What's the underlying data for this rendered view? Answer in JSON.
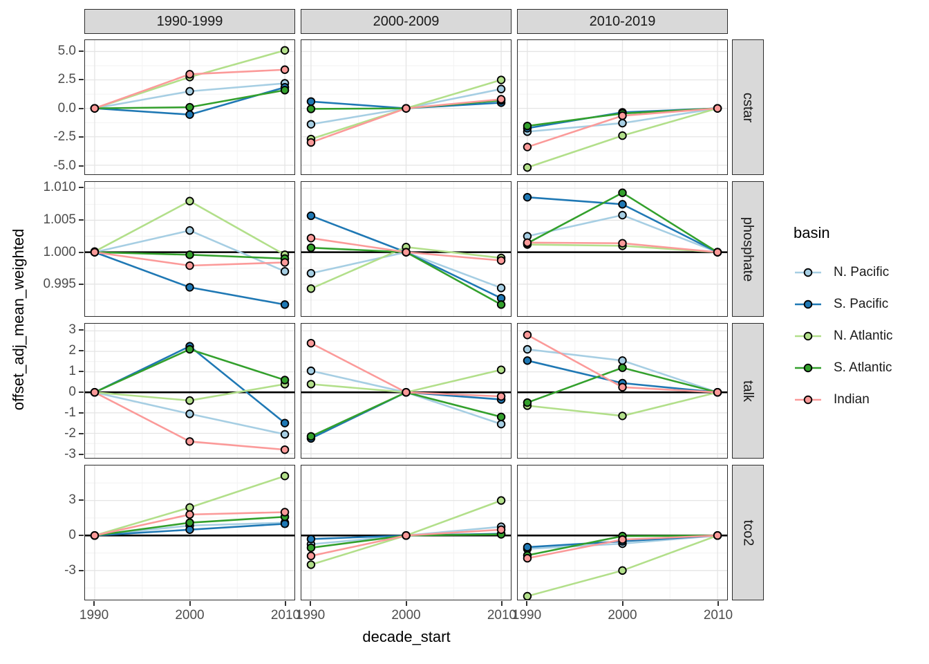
{
  "chart_data": {
    "type": "line",
    "title": "",
    "xlabel": "decade_start",
    "ylabel": "offset_adj_mean_weighted",
    "x": [
      1990,
      2000,
      2010
    ],
    "x_tick_labels": [
      "1990",
      "2000",
      "2010"
    ],
    "x_range": [
      1989,
      2011
    ],
    "grid": "on",
    "legend_position": "right",
    "facet_cols": [
      "1990-1999",
      "2000-2009",
      "2010-2019"
    ],
    "facet_rows": [
      "cstar",
      "phosphate",
      "talk",
      "tco2"
    ],
    "series_names": [
      "N. Pacific",
      "S. Pacific",
      "N. Atlantic",
      "S. Atlantic",
      "Indian"
    ],
    "series_colors": {
      "N. Pacific": "#a6cee3",
      "S. Pacific": "#1f78b4",
      "N. Atlantic": "#b2df8a",
      "S. Atlantic": "#33a02c",
      "Indian": "#fb9a99"
    },
    "row_axes": {
      "cstar": {
        "ticks": [
          5.0,
          2.5,
          0.0,
          -2.5,
          -5.0
        ],
        "tick_labels": [
          "5.0",
          "2.5",
          "0.0",
          "-2.5",
          "-5.0"
        ],
        "minor_ticks": [
          3.75,
          1.25,
          -1.25,
          -3.75
        ],
        "ymin": -5.8,
        "ymax": 6.0,
        "ref_line": null
      },
      "phosphate": {
        "ticks": [
          1.01,
          1.005,
          1.0,
          0.995
        ],
        "tick_labels": [
          "1.010",
          "1.005",
          "1.000",
          "0.995"
        ],
        "minor_ticks": [
          1.0075,
          1.0025,
          0.9975,
          0.9925
        ],
        "ymin": 0.99,
        "ymax": 1.011,
        "ref_line": 1.0
      },
      "talk": {
        "ticks": [
          3,
          2,
          1,
          0,
          -1,
          -2,
          -3
        ],
        "tick_labels": [
          "3",
          "2",
          "1",
          "0",
          "-1",
          "-2",
          "-3"
        ],
        "minor_ticks": [
          2.5,
          1.5,
          0.5,
          -0.5,
          -1.5,
          -2.5
        ],
        "ymin": -3.2,
        "ymax": 3.35,
        "ref_line": 0
      },
      "tco2": {
        "ticks": [
          3,
          0,
          -3
        ],
        "tick_labels": [
          "3",
          "0",
          "-3"
        ],
        "minor_ticks": [
          4.5,
          1.5,
          -1.5,
          -4.5
        ],
        "ymin": -5.5,
        "ymax": 6.0,
        "ref_line": 0
      }
    },
    "panels": [
      {
        "row": "cstar",
        "col": "1990-1999",
        "series": {
          "N. Pacific": [
            0,
            1.5,
            2.2
          ],
          "S. Pacific": [
            0,
            -0.55,
            1.85
          ],
          "N. Atlantic": [
            0,
            2.75,
            5.1
          ],
          "S. Atlantic": [
            0,
            0.1,
            1.6
          ],
          "Indian": [
            0,
            3.0,
            3.4
          ]
        }
      },
      {
        "row": "cstar",
        "col": "2000-2009",
        "series": {
          "N. Pacific": [
            -1.4,
            0,
            1.7
          ],
          "S. Pacific": [
            0.6,
            0,
            0.5
          ],
          "N. Atlantic": [
            -2.7,
            0,
            2.5
          ],
          "S. Atlantic": [
            -0.05,
            0,
            0.7
          ],
          "Indian": [
            -3.0,
            0,
            0.8
          ]
        }
      },
      {
        "row": "cstar",
        "col": "2010-2019",
        "series": {
          "N. Pacific": [
            -2.05,
            -1.3,
            0
          ],
          "S. Pacific": [
            -1.75,
            -0.35,
            0
          ],
          "N. Atlantic": [
            -5.2,
            -2.4,
            0
          ],
          "S. Atlantic": [
            -1.55,
            -0.45,
            0
          ],
          "Indian": [
            -3.4,
            -0.65,
            0
          ]
        }
      },
      {
        "row": "phosphate",
        "col": "1990-1999",
        "series": {
          "N. Pacific": [
            1.0,
            1.0034,
            0.997
          ],
          "S. Pacific": [
            1.0,
            0.9945,
            0.9918
          ],
          "N. Atlantic": [
            1.0001,
            1.008,
            0.9996
          ],
          "S. Atlantic": [
            1.0,
            0.9996,
            0.999
          ],
          "Indian": [
            1.0,
            0.9979,
            0.9984
          ]
        }
      },
      {
        "row": "phosphate",
        "col": "2000-2009",
        "series": {
          "N. Pacific": [
            0.9967,
            1.0,
            0.9944
          ],
          "S. Pacific": [
            1.0057,
            1.0,
            0.9928
          ],
          "N. Atlantic": [
            0.9943,
            1.0008,
            0.9991
          ],
          "S. Atlantic": [
            1.0007,
            1.0,
            0.9918
          ],
          "Indian": [
            1.0022,
            1.0,
            0.9987
          ]
        }
      },
      {
        "row": "phosphate",
        "col": "2010-2019",
        "series": {
          "N. Pacific": [
            1.0025,
            1.0058,
            1.0
          ],
          "S. Pacific": [
            1.0086,
            1.0075,
            1.0
          ],
          "N. Atlantic": [
            1.0012,
            1.001,
            1.0
          ],
          "S. Atlantic": [
            1.0014,
            1.0093,
            1.0
          ],
          "Indian": [
            1.0015,
            1.0014,
            1.0
          ]
        }
      },
      {
        "row": "talk",
        "col": "1990-1999",
        "series": {
          "N. Pacific": [
            0,
            -1.05,
            -2.05
          ],
          "S. Pacific": [
            0,
            2.25,
            -1.5
          ],
          "N. Atlantic": [
            0,
            -0.4,
            0.4
          ],
          "S. Atlantic": [
            0,
            2.1,
            0.6
          ],
          "Indian": [
            0,
            -2.4,
            -2.8
          ]
        }
      },
      {
        "row": "talk",
        "col": "2000-2009",
        "series": {
          "N. Pacific": [
            1.05,
            0,
            -1.55
          ],
          "S. Pacific": [
            -2.25,
            0,
            -0.35
          ],
          "N. Atlantic": [
            0.4,
            0,
            1.1
          ],
          "S. Atlantic": [
            -2.15,
            0,
            -1.2
          ],
          "Indian": [
            2.4,
            0,
            -0.2
          ]
        }
      },
      {
        "row": "talk",
        "col": "2010-2019",
        "series": {
          "N. Pacific": [
            2.1,
            1.55,
            0
          ],
          "S. Pacific": [
            1.55,
            0.45,
            0
          ],
          "N. Atlantic": [
            -0.65,
            -1.15,
            0
          ],
          "S. Atlantic": [
            -0.5,
            1.2,
            0
          ],
          "Indian": [
            2.8,
            0.25,
            0
          ]
        }
      },
      {
        "row": "tco2",
        "col": "1990-1999",
        "series": {
          "N. Pacific": [
            0,
            0.85,
            1.1
          ],
          "S. Pacific": [
            0,
            0.5,
            1.0
          ],
          "N. Atlantic": [
            0,
            2.4,
            5.1
          ],
          "S. Atlantic": [
            0,
            1.1,
            1.6
          ],
          "Indian": [
            0,
            1.8,
            2.0
          ]
        }
      },
      {
        "row": "tco2",
        "col": "2000-2009",
        "series": {
          "N. Pacific": [
            -0.75,
            0,
            0.75
          ],
          "S. Pacific": [
            -0.3,
            0,
            0.15
          ],
          "N. Atlantic": [
            -2.5,
            0,
            3.0
          ],
          "S. Atlantic": [
            -1.05,
            0,
            0.1
          ],
          "Indian": [
            -1.75,
            0,
            0.5
          ]
        }
      },
      {
        "row": "tco2",
        "col": "2010-2019",
        "series": {
          "N. Pacific": [
            -1.15,
            -0.7,
            0
          ],
          "S. Pacific": [
            -1.0,
            -0.5,
            0
          ],
          "N. Atlantic": [
            -5.2,
            -3.0,
            0
          ],
          "S. Atlantic": [
            -1.7,
            -0.05,
            0
          ],
          "Indian": [
            -1.95,
            -0.35,
            0
          ]
        }
      }
    ],
    "legend": {
      "title": "basin",
      "entries": [
        {
          "label": "N. Pacific",
          "color": "#a6cee3"
        },
        {
          "label": "S. Pacific",
          "color": "#1f78b4"
        },
        {
          "label": "N. Atlantic",
          "color": "#b2df8a"
        },
        {
          "label": "S. Atlantic",
          "color": "#33a02c"
        },
        {
          "label": "Indian",
          "color": "#fb9a99"
        }
      ]
    }
  }
}
